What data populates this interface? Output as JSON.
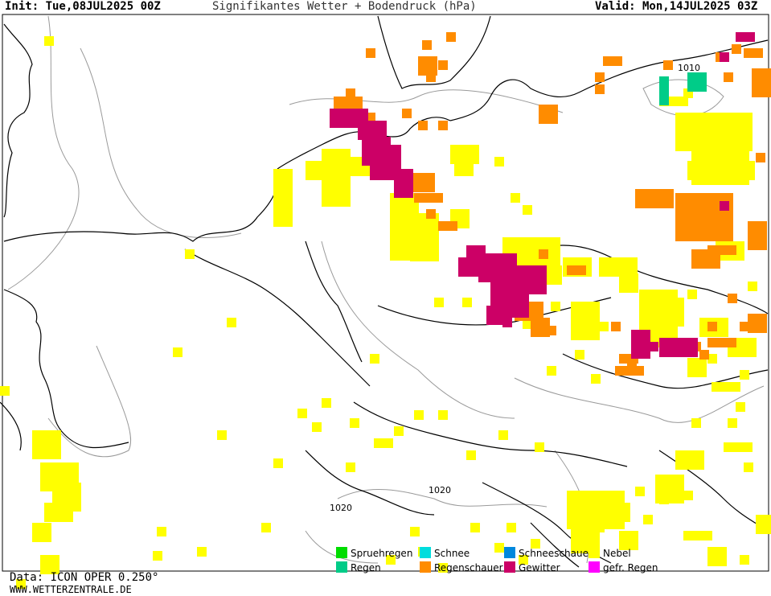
{
  "header": {
    "init": "Init: Tue,08JUL2025 00Z",
    "title": "Signifikantes Wetter + Bodendruck (hPa)",
    "valid": "Valid: Mon,14JUL2025 03Z"
  },
  "isobars": [
    {
      "label": "1010"
    },
    {
      "label": "1020"
    },
    {
      "label": "1020"
    }
  ],
  "legend": [
    {
      "label": "Spruehregen",
      "color": "#00dd00"
    },
    {
      "label": "Schnee",
      "color": "#00dddd"
    },
    {
      "label": "Schneeschauer",
      "color": "#0088dd"
    },
    {
      "label": "Nebel",
      "color": "#ffff00"
    },
    {
      "label": "Regen",
      "color": "#00cc88"
    },
    {
      "label": "Regenschauer",
      "color": "#ff8c00"
    },
    {
      "label": "Gewitter",
      "color": "#cc0066"
    },
    {
      "label": "gefr. Regen",
      "color": "#ff00ff"
    }
  ],
  "footer": {
    "data_source": "Data: ICON OPER 0.250°",
    "website": "WWW.WETTERZENTRALE.DE"
  },
  "colors": {
    "fog": "#ffff00",
    "showers": "#ff8c00",
    "thunder": "#cc0066",
    "rain": "#00cc88"
  }
}
